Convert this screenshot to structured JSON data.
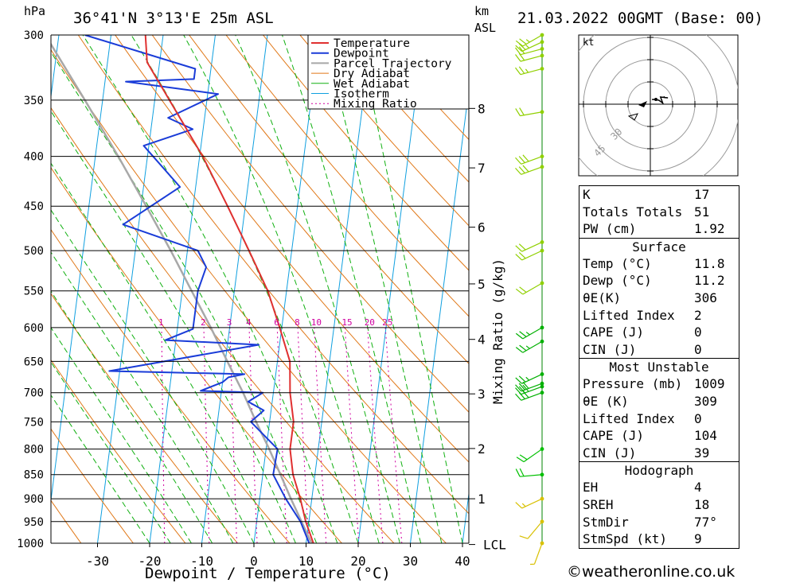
{
  "header": {
    "location": "36°41'N 3°13'E 25m ASL",
    "date": "21.03.2022 00GMT (Base: 00)",
    "hpa_unit": "hPa",
    "km_unit": "km",
    "asl_unit": "ASL"
  },
  "chart_data": {
    "type": "line",
    "title": "36°41'N 3°13'E 25m ASL",
    "xlabel": "Dewpoint / Temperature (°C)",
    "ylabel": "hPa",
    "secondary_ylabel": "Mixing Ratio (g/kg)",
    "log_pressure_axis": true,
    "skew": true,
    "xlim": [
      -40,
      40
    ],
    "ylim": [
      1000,
      300
    ],
    "x_ticks": [
      -30,
      -20,
      -10,
      0,
      10,
      20,
      30,
      40
    ],
    "pressure_ticks": [
      300,
      350,
      400,
      450,
      500,
      550,
      600,
      650,
      700,
      750,
      800,
      850,
      900,
      950,
      1000
    ],
    "km_ticks": [
      {
        "km": "1",
        "p": 900
      },
      {
        "km": "2",
        "p": 799
      },
      {
        "km": "3",
        "p": 702
      },
      {
        "km": "4",
        "p": 617
      },
      {
        "km": "5",
        "p": 541
      },
      {
        "km": "6",
        "p": 473
      },
      {
        "km": "7",
        "p": 411
      },
      {
        "km": "8",
        "p": 357
      }
    ],
    "lcl_label": "LCL",
    "lcl_pressure": 1003,
    "mixing_ratio_labels": [
      "1",
      "2",
      "3",
      "4",
      "6",
      "8",
      "10",
      "15",
      "20",
      "25"
    ],
    "legend": [
      "Temperature",
      "Dewpoint",
      "Parcel Trajectory",
      "Dry Adiabat",
      "Wet Adiabat",
      "Isotherm",
      "Mixing Ratio"
    ],
    "legend_position": "top-right",
    "colors": {
      "temperature": "#e03030",
      "dewpoint": "#1a3cd8",
      "parcel": "#a8a8a8",
      "dry_adiabat": "#e07818",
      "wet_adiabat": "#10b010",
      "isotherm": "#10a0e0",
      "mixing_ratio": "#d000a0"
    },
    "series": [
      {
        "name": "Temperature",
        "points": [
          [
            1009,
            11.8
          ],
          [
            1000,
            11.4
          ],
          [
            950,
            9.4
          ],
          [
            900,
            7.8
          ],
          [
            850,
            5.8
          ],
          [
            800,
            4.6
          ],
          [
            750,
            4.6
          ],
          [
            700,
            3.2
          ],
          [
            650,
            2.4
          ],
          [
            600,
            -0.4
          ],
          [
            550,
            -3.6
          ],
          [
            500,
            -8.2
          ],
          [
            450,
            -13.4
          ],
          [
            400,
            -19.4
          ],
          [
            350,
            -27.2
          ],
          [
            320,
            -32.4
          ],
          [
            300,
            -33.4
          ]
        ]
      },
      {
        "name": "Dewpoint",
        "points": [
          [
            1009,
            11.2
          ],
          [
            1000,
            10.6
          ],
          [
            950,
            8.4
          ],
          [
            900,
            5.0
          ],
          [
            850,
            2.0
          ],
          [
            800,
            2.2
          ],
          [
            750,
            -3.6
          ],
          [
            730,
            -1.4
          ],
          [
            715,
            -4.6
          ],
          [
            700,
            -2.0
          ],
          [
            697,
            -14.0
          ],
          [
            683,
            -10.0
          ],
          [
            675,
            -9.0
          ],
          [
            670,
            -6.0
          ],
          [
            665,
            -32.0
          ],
          [
            625,
            -4.0
          ],
          [
            618,
            -22.0
          ],
          [
            602,
            -17.0
          ],
          [
            550,
            -17.0
          ],
          [
            520,
            -16.0
          ],
          [
            500,
            -18.0
          ],
          [
            470,
            -33.0
          ],
          [
            430,
            -23.0
          ],
          [
            390,
            -31.0
          ],
          [
            375,
            -22.0
          ],
          [
            365,
            -27.0
          ],
          [
            345,
            -18.0
          ],
          [
            335,
            -36.0
          ],
          [
            333,
            -23.0
          ],
          [
            325,
            -23.0
          ],
          [
            300,
            -45.0
          ]
        ]
      },
      {
        "name": "Parcel Trajectory",
        "points": [
          [
            1009,
            11.8
          ],
          [
            1003,
            11.2
          ],
          [
            950,
            8.6
          ],
          [
            900,
            6.0
          ],
          [
            850,
            3.4
          ],
          [
            800,
            0.6
          ],
          [
            750,
            -2.6
          ],
          [
            700,
            -5.8
          ],
          [
            650,
            -9.6
          ],
          [
            600,
            -13.6
          ],
          [
            550,
            -18.2
          ],
          [
            500,
            -23.2
          ],
          [
            450,
            -29.0
          ],
          [
            400,
            -35.6
          ],
          [
            350,
            -43.4
          ],
          [
            300,
            -52.6
          ]
        ]
      }
    ]
  },
  "hodograph": {
    "unit": "kt",
    "ring_labels": [
      "30",
      "45"
    ]
  },
  "wind_barbs": [
    {
      "p": 1000,
      "dir": 200,
      "kt": 8
    },
    {
      "p": 950,
      "dir": 220,
      "kt": 10
    },
    {
      "p": 900,
      "dir": 245,
      "kt": 15
    },
    {
      "p": 850,
      "dir": 265,
      "kt": 20
    },
    {
      "p": 800,
      "dir": 235,
      "kt": 20
    },
    {
      "p": 700,
      "dir": 250,
      "kt": 30
    },
    {
      "p": 690,
      "dir": 250,
      "kt": 30
    },
    {
      "p": 685,
      "dir": 250,
      "kt": 30
    },
    {
      "p": 670,
      "dir": 245,
      "kt": 25
    },
    {
      "p": 620,
      "dir": 240,
      "kt": 25
    },
    {
      "p": 600,
      "dir": 240,
      "kt": 25
    },
    {
      "p": 540,
      "dir": 240,
      "kt": 20
    },
    {
      "p": 500,
      "dir": 245,
      "kt": 20
    },
    {
      "p": 490,
      "dir": 245,
      "kt": 20
    },
    {
      "p": 410,
      "dir": 250,
      "kt": 30
    },
    {
      "p": 400,
      "dir": 250,
      "kt": 30
    },
    {
      "p": 360,
      "dir": 260,
      "kt": 20
    },
    {
      "p": 325,
      "dir": 255,
      "kt": 25
    },
    {
      "p": 315,
      "dir": 255,
      "kt": 20
    },
    {
      "p": 310,
      "dir": 255,
      "kt": 20
    },
    {
      "p": 305,
      "dir": 245,
      "kt": 25
    },
    {
      "p": 300,
      "dir": 240,
      "kt": 25
    }
  ],
  "indices": [
    {
      "label": "K",
      "value": "17"
    },
    {
      "label": "Totals Totals",
      "value": "51"
    },
    {
      "label": "PW (cm)",
      "value": "1.92"
    }
  ],
  "surface": {
    "title": "Surface",
    "rows": [
      {
        "label": "Temp (°C)",
        "value": "11.8"
      },
      {
        "label": "Dewp (°C)",
        "value": "11.2"
      },
      {
        "label": "θE(K)",
        "value": "306"
      },
      {
        "label": "Lifted Index",
        "value": "2"
      },
      {
        "label": "CAPE (J)",
        "value": "0"
      },
      {
        "label": "CIN (J)",
        "value": "0"
      }
    ]
  },
  "most_unstable": {
    "title": "Most Unstable",
    "rows": [
      {
        "label": "Pressure (mb)",
        "value": "1009"
      },
      {
        "label": "θE (K)",
        "value": "309"
      },
      {
        "label": "Lifted Index",
        "value": "0"
      },
      {
        "label": "CAPE (J)",
        "value": "104"
      },
      {
        "label": "CIN (J)",
        "value": "39"
      }
    ]
  },
  "hodograph_stats": {
    "title": "Hodograph",
    "rows": [
      {
        "label": "EH",
        "value": "4"
      },
      {
        "label": "SREH",
        "value": "18"
      },
      {
        "label": "StmDir",
        "value": "77°"
      },
      {
        "label": "StmSpd (kt)",
        "value": "9"
      }
    ]
  },
  "copyright": "©weatheronline.co.uk"
}
